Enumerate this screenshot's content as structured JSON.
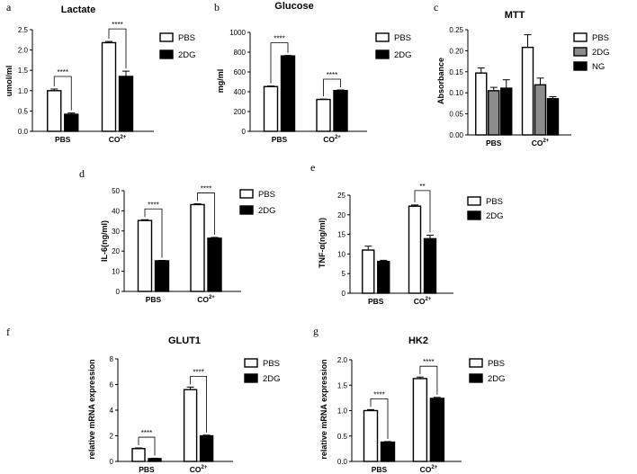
{
  "colors": {
    "PBS": "#ffffff",
    "2DG": "#000000",
    "NG": "#000000",
    "2DG_MTT": "#8c8c8c",
    "ink": "#000000"
  },
  "chart_data": [
    {
      "panel_label": "a",
      "type": "bar",
      "title": "Lactate",
      "ylabel": "umol/ml",
      "ylim": [
        0,
        2.5
      ],
      "yticks": [
        "0.0",
        "0.5",
        "1.0",
        "1.5",
        "2.0",
        "2.5"
      ],
      "categories": [
        "PBS",
        "CO"
      ],
      "category_suffix": [
        "",
        "2+"
      ],
      "series": [
        {
          "name": "PBS",
          "values": [
            1.0,
            2.18
          ],
          "errors": [
            0.04,
            0.03
          ]
        },
        {
          "name": "2DG",
          "values": [
            0.42,
            1.35
          ],
          "errors": [
            0.03,
            0.13
          ]
        }
      ],
      "significance": [
        "****",
        "****"
      ]
    },
    {
      "panel_label": "b",
      "type": "bar",
      "title": "Glucose",
      "ylabel": "mg/ml",
      "ylim": [
        0,
        1000
      ],
      "yticks": [
        "0",
        "200",
        "400",
        "600",
        "800",
        "1000"
      ],
      "categories": [
        "PBS",
        "CO"
      ],
      "category_suffix": [
        "",
        "2+"
      ],
      "series": [
        {
          "name": "PBS",
          "values": [
            452,
            322
          ],
          "errors": [
            6,
            4
          ]
        },
        {
          "name": "2DG",
          "values": [
            762,
            412
          ],
          "errors": [
            5,
            6
          ]
        }
      ],
      "significance": [
        "****",
        "****"
      ]
    },
    {
      "panel_label": "c",
      "type": "bar",
      "title": "MTT",
      "ylabel": "Absorbance",
      "ylim": [
        0,
        0.25
      ],
      "yticks": [
        "0.00",
        "0.05",
        "0.10",
        "0.15",
        "0.20",
        "0.25"
      ],
      "categories": [
        "PBS",
        "CO"
      ],
      "category_suffix": [
        "",
        "2+"
      ],
      "series": [
        {
          "name": "PBS",
          "values": [
            0.147,
            0.208
          ],
          "errors": [
            0.012,
            0.03
          ]
        },
        {
          "name": "2DG",
          "values": [
            0.105,
            0.119
          ],
          "errors": [
            0.008,
            0.016
          ]
        },
        {
          "name": "NG",
          "values": [
            0.111,
            0.086
          ],
          "errors": [
            0.02,
            0.005
          ]
        }
      ],
      "significance": [
        "",
        ""
      ]
    },
    {
      "panel_label": "d",
      "type": "bar",
      "title": "",
      "ylabel": "IL-6(ng/ml)",
      "ylim": [
        0,
        50
      ],
      "yticks": [
        "0",
        "10",
        "20",
        "30",
        "40",
        "50"
      ],
      "categories": [
        "PBS",
        "CO"
      ],
      "category_suffix": [
        "",
        "2+"
      ],
      "series": [
        {
          "name": "PBS",
          "values": [
            35.2,
            43.1
          ],
          "errors": [
            0.4,
            0.4
          ]
        },
        {
          "name": "2DG",
          "values": [
            15.2,
            26.4
          ],
          "errors": [
            0.2,
            0.4
          ]
        }
      ],
      "significance": [
        "****",
        "****"
      ]
    },
    {
      "panel_label": "e",
      "type": "bar",
      "title": "",
      "ylabel": "TNF-α(ng/ml)",
      "ylim": [
        0,
        25
      ],
      "yticks": [
        "0",
        "5",
        "10",
        "15",
        "20",
        "25"
      ],
      "categories": [
        "PBS",
        "CO"
      ],
      "category_suffix": [
        "",
        "2+"
      ],
      "series": [
        {
          "name": "PBS",
          "values": [
            11.0,
            22.2
          ],
          "errors": [
            1.0,
            0.3
          ]
        },
        {
          "name": "2DG",
          "values": [
            8.1,
            13.9
          ],
          "errors": [
            0.3,
            0.9
          ]
        }
      ],
      "significance": [
        "",
        "**"
      ]
    },
    {
      "panel_label": "f",
      "type": "bar",
      "title": "GLUT1",
      "ylabel": "relative mRNA expression",
      "ylim": [
        0,
        8
      ],
      "yticks": [
        "0",
        "2",
        "4",
        "6",
        "8"
      ],
      "categories": [
        "PBS",
        "CO"
      ],
      "category_suffix": [
        "",
        "2+"
      ],
      "series": [
        {
          "name": "PBS",
          "values": [
            1.0,
            5.6
          ],
          "errors": [
            0.05,
            0.2
          ]
        },
        {
          "name": "2DG",
          "values": [
            0.22,
            2.0
          ],
          "errors": [
            0.03,
            0.05
          ]
        }
      ],
      "significance": [
        "****",
        "****"
      ]
    },
    {
      "panel_label": "g",
      "type": "bar",
      "title": "HK2",
      "ylabel": "relative mRNA expression",
      "ylim": [
        0,
        2.0
      ],
      "yticks": [
        "0.0",
        "0.5",
        "1.0",
        "1.5",
        "2.0"
      ],
      "categories": [
        "PBS",
        "CO"
      ],
      "category_suffix": [
        "",
        "2+"
      ],
      "series": [
        {
          "name": "PBS",
          "values": [
            1.0,
            1.63
          ],
          "errors": [
            0.02,
            0.03
          ]
        },
        {
          "name": "2DG",
          "values": [
            0.38,
            1.24
          ],
          "errors": [
            0.01,
            0.02
          ]
        }
      ],
      "significance": [
        "****",
        "****"
      ]
    }
  ]
}
